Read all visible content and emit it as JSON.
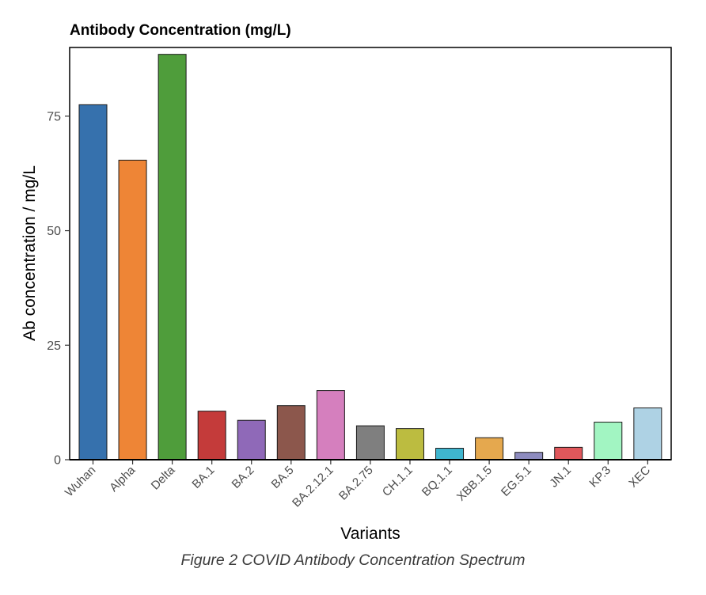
{
  "chart_data": {
    "type": "bar",
    "title": "Antibody Concentration (mg/L)",
    "xlabel": "Variants",
    "ylabel": "Ab concentration / mg/L",
    "ylim": [
      0,
      90
    ],
    "yticks": [
      0,
      25,
      50,
      75
    ],
    "grid": false,
    "legend": "none",
    "categories": [
      "Wuhan",
      "Alpha",
      "Delta",
      "BA.1",
      "BA.2",
      "BA.5",
      "BA.2.12.1",
      "BA.2.75",
      "CH.1.1",
      "BQ.1.1",
      "XBB.1.5",
      "EG.5.1",
      "JN.1",
      "KP.3",
      "XEC"
    ],
    "values": [
      77.5,
      65.4,
      88.5,
      10.6,
      8.6,
      11.8,
      15.1,
      7.4,
      6.8,
      2.5,
      4.8,
      1.6,
      2.7,
      8.2,
      11.3
    ],
    "colors": [
      "#3671ad",
      "#ee8536",
      "#4f9d3b",
      "#c43b3a",
      "#8f69b8",
      "#8c574c",
      "#d57fbe",
      "#7f7f7f",
      "#bcbc40",
      "#3fb5ce",
      "#e5a84e",
      "#8e8cbf",
      "#e0575b",
      "#a2f5c2",
      "#aed2e4"
    ]
  },
  "caption": "Figure 2 COVID Antibody Concentration Spectrum"
}
